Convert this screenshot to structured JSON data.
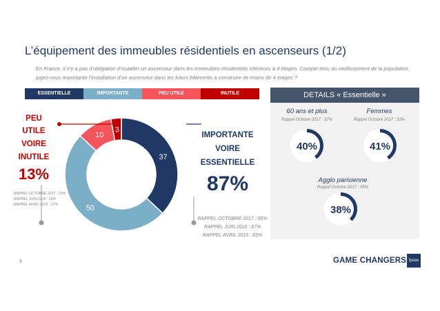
{
  "title": "L’équipement des immeubles résidentiels en ascenseurs (1/2)",
  "subtitle": "En France, il n’y a pas d’obligation d’installer un ascenseur dans les immeubles résidentiels inférieurs à 4 étages. Compte tenu du vieillissement de la population, jugez-vous importante l’installation d’un ascenseur dans les futurs bâtiments à construire de moins de 4 étages ?",
  "legend": [
    {
      "label": "Essentielle",
      "color": "#1f3864"
    },
    {
      "label": "Importante",
      "color": "#7bafc8"
    },
    {
      "label": "Peu utile",
      "color": "#f4555a"
    },
    {
      "label": "Inutile",
      "color": "#c00000"
    }
  ],
  "left_summary": {
    "label_lines": [
      "Peu",
      "utile",
      "voire",
      "Inutile"
    ],
    "value": "13%",
    "rappels": [
      "Rappel Octobre 2017 : 15%",
      "Rappel juin 2016 : 13%",
      "Rappel avril 2015 : 17%"
    ]
  },
  "right_summary": {
    "label_lines": [
      "Importante",
      "voire",
      "Essentielle"
    ],
    "value": "87%",
    "rappels": [
      "Rappel Octobre 2017 : 85%",
      "Rappel juin 2016 : 87%",
      "Rappel avril 2015 : 83%"
    ]
  },
  "details": {
    "header": "DETAILS « Essentielle »",
    "items": [
      {
        "title": "60 ans et plus",
        "rappel": "Rappel Octobre 2017 : 37%",
        "value": 40,
        "label": "40%"
      },
      {
        "title": "Femmes",
        "rappel": "Rappel Octobre 2017 : 33%",
        "value": 41,
        "label": "41%"
      },
      {
        "title": "Agglo parisienne",
        "rappel": "Rappel Octobre 2017 : 35%",
        "value": 38,
        "label": "38%"
      }
    ]
  },
  "chart_data": {
    "type": "pie",
    "title": "",
    "categories": [
      "Essentielle",
      "Importante",
      "Peu utile",
      "Inutile"
    ],
    "values": [
      37,
      50,
      10,
      3
    ],
    "value_labels": [
      "37",
      "50",
      "10",
      "3"
    ],
    "colors": [
      "#1f3864",
      "#7bafc8",
      "#f4555a",
      "#c00000"
    ],
    "donut": true,
    "legend_position": "top"
  },
  "footer": {
    "page": "5",
    "brand": "GAME CHANGERS",
    "logo": "Ipsos"
  }
}
